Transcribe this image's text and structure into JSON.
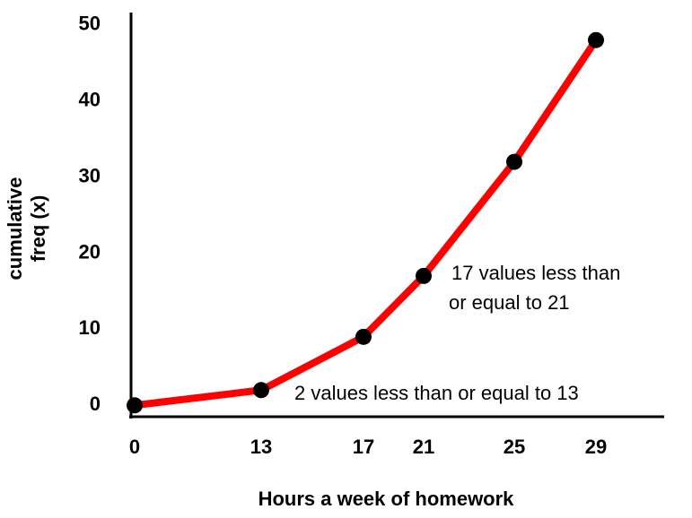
{
  "chart_data": {
    "type": "line",
    "xlabel": "Hours a week of  homework",
    "ylabel": [
      "cumulative",
      "freq (x)"
    ],
    "categories": [
      "0",
      "13",
      "17",
      "21",
      "25",
      "29"
    ],
    "values": [
      0,
      2,
      9,
      17,
      32,
      48
    ],
    "color": "#ff0000",
    "marker_color": "#000000",
    "ylim": [
      -1.5,
      51.5
    ],
    "yticks": [
      0,
      10,
      20,
      30,
      40,
      50
    ],
    "grid": false,
    "annotations": [
      [
        "17 values less than",
        "or equal to 21"
      ],
      [
        "2 values less than or equal to 13"
      ]
    ]
  }
}
